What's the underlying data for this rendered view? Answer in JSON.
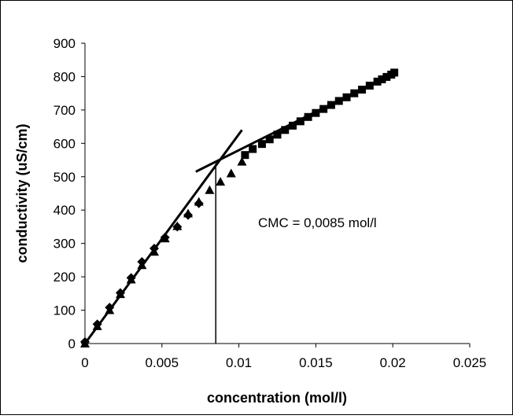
{
  "chart_data": {
    "type": "scatter",
    "xlabel": "concentration (mol/l)",
    "ylabel": "conductivity (uS/cm)",
    "xlim": [
      0,
      0.025
    ],
    "ylim": [
      0,
      900
    ],
    "x_ticks": [
      0,
      0.005,
      0.01,
      0.015,
      0.02,
      0.025
    ],
    "x_tick_labels": [
      "0",
      "0.005",
      "0.01",
      "0.015",
      "0.02",
      "0.025"
    ],
    "y_ticks": [
      0,
      100,
      200,
      300,
      400,
      500,
      600,
      700,
      800,
      900
    ],
    "y_tick_labels": [
      "0",
      "100",
      "200",
      "300",
      "400",
      "500",
      "600",
      "700",
      "800",
      "900"
    ],
    "grid": false,
    "legend": "none",
    "series": [
      {
        "marker": "diamond",
        "color": "#000000",
        "x": [
          0,
          0.0008,
          0.0016,
          0.0023,
          0.003,
          0.0037,
          0.0045,
          0.0052,
          0.006,
          0.0067,
          0.0074
        ],
        "y": [
          5,
          58,
          108,
          152,
          197,
          245,
          285,
          318,
          350,
          385,
          420
        ]
      },
      {
        "marker": "triangle",
        "color": "#000000",
        "x": [
          0,
          0.0008,
          0.0016,
          0.0023,
          0.003,
          0.0037,
          0.0045,
          0.0052,
          0.006,
          0.0067,
          0.0074,
          0.0081,
          0.0088,
          0.0095,
          0.0102
        ],
        "y": [
          0,
          52,
          100,
          148,
          192,
          235,
          275,
          315,
          352,
          390,
          425,
          460,
          485,
          510,
          545
        ]
      },
      {
        "marker": "square",
        "color": "#000000",
        "x": [
          0.0104,
          0.0109,
          0.0115,
          0.012,
          0.0125,
          0.013,
          0.0135,
          0.014,
          0.0145,
          0.015,
          0.0155,
          0.016,
          0.0165,
          0.017,
          0.0175,
          0.018,
          0.0185,
          0.019,
          0.0193,
          0.0196,
          0.0199,
          0.0201
        ],
        "y": [
          565,
          583,
          598,
          612,
          626,
          640,
          653,
          666,
          679,
          691,
          703,
          715,
          727,
          738,
          750,
          761,
          773,
          785,
          792,
          799,
          806,
          812
        ]
      }
    ],
    "fit_lines": [
      {
        "x": [
          0,
          0.0102
        ],
        "y": [
          0,
          640
        ]
      },
      {
        "x": [
          0.0072,
          0.0201
        ],
        "y": [
          515,
          812
        ]
      }
    ],
    "cmc_marker": {
      "x": 0.0085,
      "y": 540
    },
    "annotation": "CMC = 0,0085 mol/l"
  }
}
